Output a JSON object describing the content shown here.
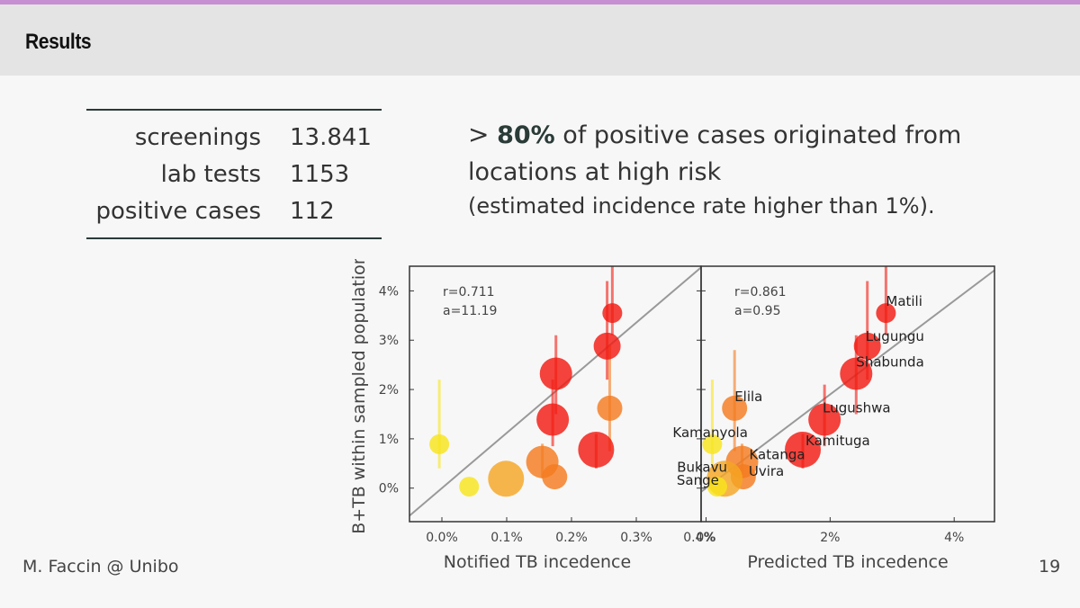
{
  "slide": {
    "title": "Results",
    "footer_left": "M. Faccin @ Unibo",
    "page_number": "19",
    "accent_color": "#c58fd1"
  },
  "stats": [
    {
      "label": "screenings",
      "value": "13.841"
    },
    {
      "label": "lab tests",
      "value": "1153"
    },
    {
      "label": "positive cases",
      "value": "112"
    }
  ],
  "claim": {
    "symbol": ">",
    "highlight": "80%",
    "text": "of positive cases originated from locations at high risk",
    "note": "(estimated incidence rate higher than 1%)."
  },
  "chart_data": [
    {
      "type": "scatter",
      "xlabel": "Notified TB incedence",
      "ylabel": "B+TB within sampled population",
      "xlim": [
        -0.0005,
        0.004
      ],
      "ylim": [
        -0.0068,
        0.045
      ],
      "xticks": [
        0.0,
        0.001,
        0.002,
        0.003,
        0.004
      ],
      "xtick_labels": [
        "0.0%",
        "0.1%",
        "0.2%",
        "0.3%",
        "0.4%"
      ],
      "yticks": [
        0.0,
        0.01,
        0.02,
        0.03,
        0.04
      ],
      "ytick_labels": [
        "0%",
        "1%",
        "2%",
        "3%",
        "4%"
      ],
      "annotation": [
        "r=0.711",
        "a=11.19"
      ],
      "fit_line": {
        "slope": 11.19,
        "intercept": 0.0
      },
      "points": [
        {
          "x": 0.00263,
          "y": 0.0355,
          "err": [
            0.031,
            0.046
          ],
          "color": "#f21b12",
          "size": 11
        },
        {
          "x": 0.00255,
          "y": 0.0288,
          "err": [
            0.022,
            0.042
          ],
          "color": "#f21b12",
          "size": 15
        },
        {
          "x": 0.00176,
          "y": 0.0232,
          "err": [
            0.015,
            0.031
          ],
          "color": "#f21b12",
          "size": 18
        },
        {
          "x": 0.00259,
          "y": 0.0162,
          "err": [
            0.0075,
            0.029
          ],
          "color": "#f47b20",
          "size": 14
        },
        {
          "x": 0.00171,
          "y": 0.0139,
          "err": [
            0.0085,
            0.022
          ],
          "color": "#f21b12",
          "size": 18
        },
        {
          "x": -4e-05,
          "y": 0.0089,
          "err": [
            0.004,
            0.022
          ],
          "color": "#f8e41c",
          "size": 11
        },
        {
          "x": 0.00238,
          "y": 0.0078,
          "err": [
            0.004,
            0.011
          ],
          "color": "#f21b12",
          "size": 20
        },
        {
          "x": 0.00155,
          "y": 0.0053,
          "err": [
            0.002,
            0.009
          ],
          "color": "#f47b20",
          "size": 18
        },
        {
          "x": 0.00174,
          "y": 0.0023,
          "err": null,
          "color": "#f47b20",
          "size": 14
        },
        {
          "x": 0.00099,
          "y": 0.0019,
          "err": null,
          "color": "#f5a623",
          "size": 20
        },
        {
          "x": 0.00042,
          "y": 0.0003,
          "err": null,
          "color": "#f8e41c",
          "size": 11
        }
      ]
    },
    {
      "type": "scatter",
      "xlabel": "Predicted TB incedence",
      "xlim": [
        -0.0008,
        0.0465
      ],
      "ylim": [
        -0.0068,
        0.045
      ],
      "xticks": [
        0.0,
        0.02,
        0.04
      ],
      "xtick_labels": [
        "0%",
        "2%",
        "4%"
      ],
      "annotation": [
        "r=0.861",
        "a=0.95"
      ],
      "fit_line": {
        "slope": 0.95,
        "intercept": 0.0
      },
      "points": [
        {
          "name": "Matili",
          "x": 0.029,
          "y": 0.0355,
          "err": [
            0.031,
            0.046
          ],
          "color": "#f21b12",
          "size": 11
        },
        {
          "name": "Lugungu",
          "x": 0.026,
          "y": 0.0288,
          "err": [
            0.022,
            0.042
          ],
          "color": "#f21b12",
          "size": 15
        },
        {
          "name": "Shabunda",
          "x": 0.0242,
          "y": 0.0232,
          "err": [
            0.015,
            0.031
          ],
          "color": "#f21b12",
          "size": 18
        },
        {
          "name": "Elila",
          "x": 0.0046,
          "y": 0.0162,
          "err": [
            0.0075,
            0.028
          ],
          "color": "#f47b20",
          "size": 14
        },
        {
          "name": "Lugushwa",
          "x": 0.0191,
          "y": 0.0139,
          "err": [
            0.0085,
            0.021
          ],
          "color": "#f21b12",
          "size": 18
        },
        {
          "name": "Kamanyola",
          "x": 0.001,
          "y": 0.0089,
          "err": [
            0.004,
            0.022
          ],
          "color": "#f8e41c",
          "size": 11
        },
        {
          "name": "Kamituga",
          "x": 0.0156,
          "y": 0.0078,
          "err": [
            0.004,
            0.011
          ],
          "color": "#f21b12",
          "size": 20
        },
        {
          "name": "Katanga",
          "x": 0.0058,
          "y": 0.0053,
          "err": [
            0.002,
            0.009
          ],
          "color": "#f47b20",
          "size": 18
        },
        {
          "name": "Uvira",
          "x": 0.006,
          "y": 0.0023,
          "err": null,
          "color": "#f47b20",
          "size": 14
        },
        {
          "name": "Bukavu",
          "x": 0.003,
          "y": 0.0019,
          "err": null,
          "color": "#f5a623",
          "size": 20
        },
        {
          "name": "Sange",
          "x": 0.0018,
          "y": 0.0003,
          "err": null,
          "color": "#f8e41c",
          "size": 11
        }
      ]
    }
  ]
}
